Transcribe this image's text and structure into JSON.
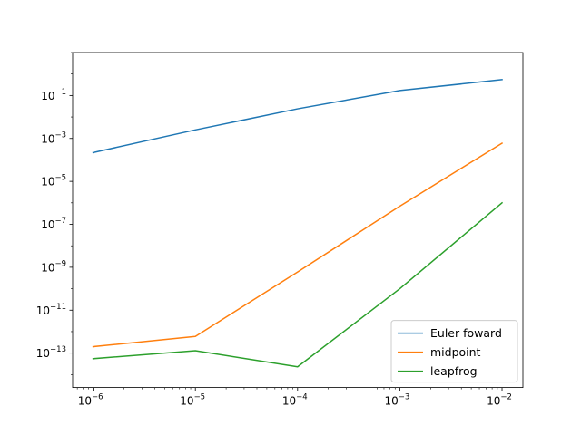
{
  "chart_data": {
    "type": "line",
    "title": "",
    "xlabel": "",
    "ylabel": "",
    "xscale": "log",
    "yscale": "log",
    "x": [
      1e-06,
      1e-05,
      0.0001,
      0.001,
      0.01
    ],
    "xlim": [
      6.3e-07,
      0.016
    ],
    "ylim": [
      2.5e-15,
      10
    ],
    "grid": false,
    "legend_position": "lower-right",
    "x_ticks": [
      {
        "value": 1e-06,
        "base": "10",
        "exp": "−6"
      },
      {
        "value": 1e-05,
        "base": "10",
        "exp": "−5"
      },
      {
        "value": 0.0001,
        "base": "10",
        "exp": "−4"
      },
      {
        "value": 0.001,
        "base": "10",
        "exp": "−3"
      },
      {
        "value": 0.01,
        "base": "10",
        "exp": "−2"
      }
    ],
    "y_ticks": [
      {
        "value": 1e-13,
        "base": "10",
        "exp": "−13"
      },
      {
        "value": 1e-11,
        "base": "10",
        "exp": "−11"
      },
      {
        "value": 1e-09,
        "base": "10",
        "exp": "−9"
      },
      {
        "value": 1e-07,
        "base": "10",
        "exp": "−7"
      },
      {
        "value": 1e-05,
        "base": "10",
        "exp": "−5"
      },
      {
        "value": 0.001,
        "base": "10",
        "exp": "−3"
      },
      {
        "value": 0.1,
        "base": "10",
        "exp": "−1"
      }
    ],
    "series": [
      {
        "name": "Euler foward",
        "color": "#1f77b4",
        "values": [
          0.00022,
          0.0025,
          0.024,
          0.17,
          0.55
        ]
      },
      {
        "name": "midpoint",
        "color": "#ff7f0e",
        "values": [
          2e-13,
          6e-13,
          6e-10,
          7e-07,
          0.0006
        ]
      },
      {
        "name": "leapfrog",
        "color": "#2ca02c",
        "values": [
          5.5e-14,
          1.3e-13,
          2.3e-14,
          1e-10,
          1e-06
        ]
      }
    ]
  }
}
